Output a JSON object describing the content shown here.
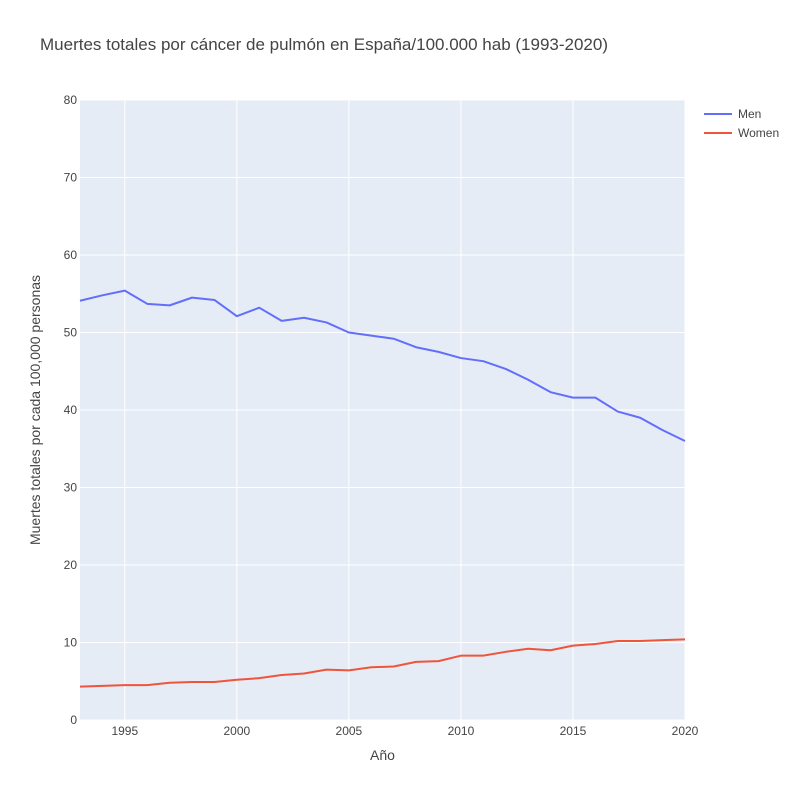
{
  "chart_data": {
    "type": "line",
    "title": "Muertes totales por cáncer de pulmón en España/100.000 hab (1993-2020)",
    "xlabel": "Año",
    "ylabel": "Muertes totales por cada 100,000 personas",
    "xlim": [
      1993,
      2020
    ],
    "ylim": [
      0,
      80
    ],
    "xticks": [
      1995,
      2000,
      2005,
      2010,
      2015,
      2020
    ],
    "yticks": [
      0,
      10,
      20,
      30,
      40,
      50,
      60,
      70,
      80
    ],
    "grid": true,
    "legend_position": "top-right",
    "plot_background": "#E5ECF6",
    "grid_color": "#FFFFFF",
    "x": [
      1993,
      1994,
      1995,
      1996,
      1997,
      1998,
      1999,
      2000,
      2001,
      2002,
      2003,
      2004,
      2005,
      2006,
      2007,
      2008,
      2009,
      2010,
      2011,
      2012,
      2013,
      2014,
      2015,
      2016,
      2017,
      2018,
      2019,
      2020
    ],
    "series": [
      {
        "name": "Men",
        "color": "#636EFA",
        "values": [
          54.1,
          54.8,
          55.4,
          53.7,
          53.5,
          54.5,
          54.2,
          52.1,
          53.2,
          51.5,
          51.9,
          51.3,
          50.0,
          49.6,
          49.2,
          48.1,
          47.5,
          46.7,
          46.3,
          45.3,
          43.9,
          42.3,
          41.6,
          41.6,
          39.8,
          39.0,
          37.4,
          36.0
        ]
      },
      {
        "name": "Women",
        "color": "#EF553B",
        "values": [
          4.3,
          4.4,
          4.5,
          4.5,
          4.8,
          4.9,
          4.9,
          5.2,
          5.4,
          5.8,
          6.0,
          6.5,
          6.4,
          6.8,
          6.9,
          7.5,
          7.6,
          8.3,
          8.3,
          8.8,
          9.2,
          9.0,
          9.6,
          9.8,
          10.2,
          10.2,
          10.3,
          10.4
        ]
      }
    ]
  }
}
